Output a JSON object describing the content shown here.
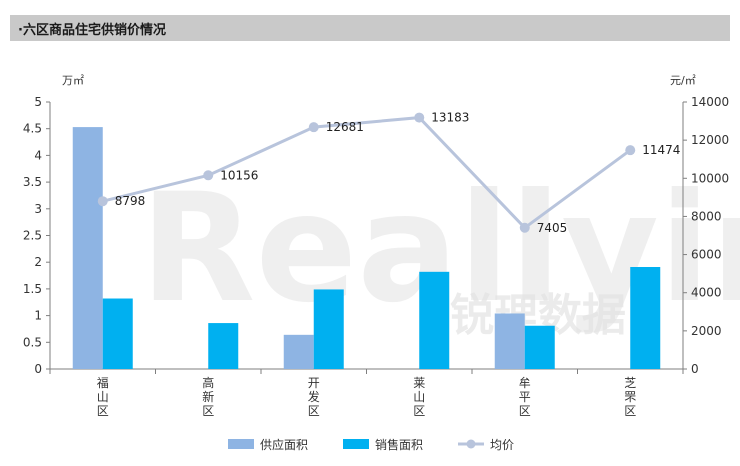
{
  "header": {
    "title": "·六区商品住宅供销价情况"
  },
  "watermark": {
    "brand": "Reallyinfo",
    "cn": "锐理数据"
  },
  "chart_data": {
    "type": "bar",
    "title": "",
    "categories": [
      "福山区",
      "高新区",
      "开发区",
      "莱山区",
      "牟平区",
      "芝罘区"
    ],
    "series": [
      {
        "name": "供应面积",
        "kind": "bar",
        "axis": "left",
        "color": "#8eb4e3",
        "values": [
          4.53,
          null,
          0.64,
          null,
          1.04,
          null
        ]
      },
      {
        "name": "销售面积",
        "kind": "bar",
        "axis": "left",
        "color": "#00b0f0",
        "values": [
          1.32,
          0.86,
          1.49,
          1.82,
          0.81,
          1.91
        ]
      },
      {
        "name": "均价",
        "kind": "line",
        "axis": "right",
        "color": "#b8c4dc",
        "values": [
          8798,
          10156,
          12681,
          13183,
          7405,
          11474
        ]
      }
    ],
    "y_left": {
      "label": "万㎡",
      "min": 0,
      "max": 5,
      "ticks": [
        "0",
        "0.5",
        "1",
        "1.5",
        "2",
        "2.5",
        "3",
        "3.5",
        "4",
        "4.5",
        "5"
      ]
    },
    "y_right": {
      "label": "元/㎡",
      "min": 0,
      "max": 14000,
      "ticks": [
        "0",
        "2000",
        "4000",
        "6000",
        "8000",
        "10000",
        "12000",
        "14000"
      ]
    },
    "line_labels": [
      "8798",
      "10156",
      "12681",
      "13183",
      "7405",
      "11474"
    ],
    "legend": {
      "placement": "bottom",
      "items": [
        "供应面积",
        "销售面积",
        "均价"
      ]
    },
    "grid": false
  }
}
